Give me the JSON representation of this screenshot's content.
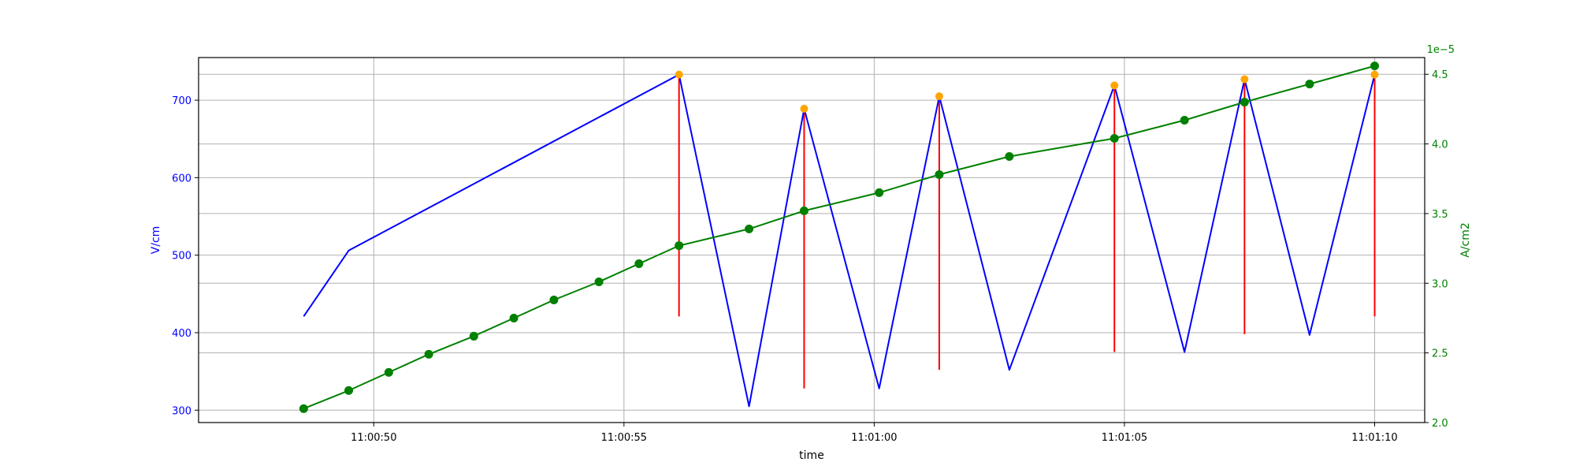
{
  "chart_data": {
    "type": "line",
    "title": "",
    "xlabel": "time",
    "ylabel_left": "V/cm",
    "ylabel_right": "A/cm2",
    "right_axis_offset_text": "1e−5",
    "grid": true,
    "x_range": [
      "11:00:46.5",
      "11:01:11"
    ],
    "ylim_left": [
      284,
      755
    ],
    "ylim_right": [
      2.0,
      4.62
    ],
    "x_ticks": [
      "11:00:50",
      "11:00:55",
      "11:01:00",
      "11:01:05",
      "11:01:10"
    ],
    "y_ticks_left": [
      300,
      400,
      500,
      600,
      700
    ],
    "y_ticks_right": [
      2.0,
      2.5,
      3.0,
      3.5,
      4.0,
      4.5
    ],
    "y_tick_labels_right": [
      "2.0",
      "2.5",
      "3.0",
      "3.5",
      "4.0",
      "4.5"
    ],
    "colors": {
      "voltage": "#0000ff",
      "current": "#008000",
      "pulse": "#ff0000",
      "peak": "#ffa500",
      "grid": "#b0b0b0",
      "frame": "#000000"
    },
    "voltage_series": {
      "axis": "left",
      "x": [
        "11:00:48.6",
        "11:00:49.5",
        "11:00:56.1",
        "11:00:57.5",
        "11:00:58.6",
        "11:01:00.1",
        "11:01:01.3",
        "11:01:02.7",
        "11:01:04.8",
        "11:01:06.2",
        "11:01:07.4",
        "11:01:08.7",
        "11:01:10.0"
      ],
      "values": [
        421,
        506,
        733,
        305,
        689,
        328,
        705,
        352,
        719,
        375,
        727,
        397,
        733
      ]
    },
    "current_series": {
      "axis": "right",
      "x": [
        "11:00:48.6",
        "11:00:49.5",
        "11:00:50.3",
        "11:00:51.1",
        "11:00:52.0",
        "11:00:52.8",
        "11:00:53.6",
        "11:00:54.5",
        "11:00:55.3",
        "11:00:56.1",
        "11:00:57.5",
        "11:00:58.6",
        "11:01:00.1",
        "11:01:01.3",
        "11:01:02.7",
        "11:01:04.8",
        "11:01:06.2",
        "11:01:07.4",
        "11:01:08.7",
        "11:01:10.0"
      ],
      "values": [
        2.1,
        2.23,
        2.36,
        2.49,
        2.62,
        2.75,
        2.88,
        3.01,
        3.14,
        3.27,
        3.39,
        3.52,
        3.65,
        3.78,
        3.91,
        4.04,
        4.17,
        4.3,
        4.43,
        4.56
      ]
    },
    "pulses": [
      {
        "x": "11:00:56.1",
        "y_low": 421,
        "y_high": 733
      },
      {
        "x": "11:00:58.6",
        "y_low": 328,
        "y_high": 689
      },
      {
        "x": "11:01:01.3",
        "y_low": 352,
        "y_high": 705
      },
      {
        "x": "11:01:04.8",
        "y_low": 375,
        "y_high": 719
      },
      {
        "x": "11:01:07.4",
        "y_low": 398,
        "y_high": 727
      },
      {
        "x": "11:01:10.0",
        "y_low": 421,
        "y_high": 733
      }
    ]
  }
}
